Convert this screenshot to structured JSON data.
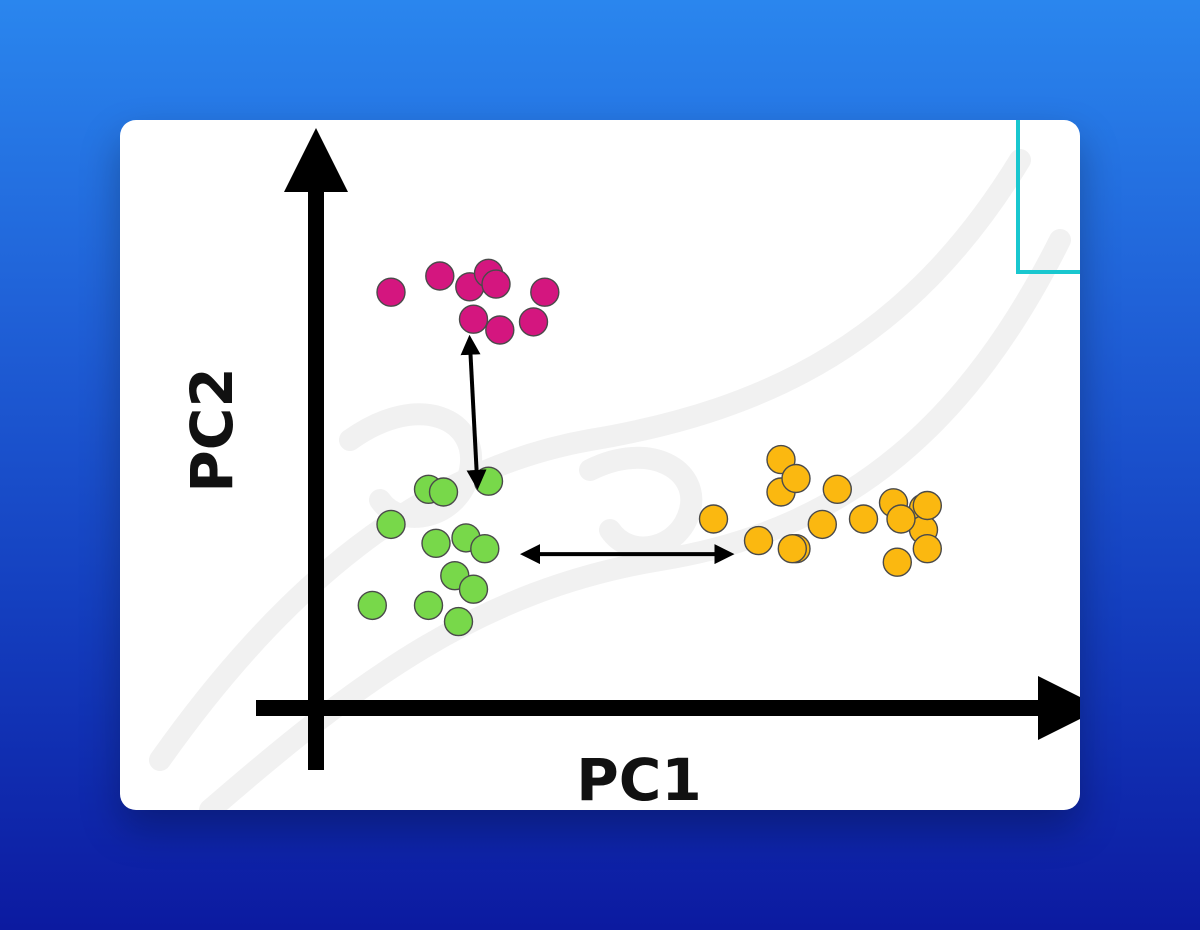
{
  "chart_data": {
    "type": "scatter",
    "xlabel": "PC1",
    "ylabel": "PC2",
    "xlim": [
      0,
      100
    ],
    "ylim": [
      0,
      100
    ],
    "grid": false,
    "series": [
      {
        "color": "#d4167f",
        "points": [
          [
            10,
            77
          ],
          [
            16.5,
            80
          ],
          [
            20.5,
            78
          ],
          [
            23,
            80.5
          ],
          [
            24,
            78.5
          ],
          [
            21,
            72
          ],
          [
            24.5,
            70
          ],
          [
            30.5,
            77
          ],
          [
            29,
            71.5
          ]
        ]
      },
      {
        "color": "#78d84a",
        "points": [
          [
            10,
            34
          ],
          [
            15,
            40.5
          ],
          [
            17,
            40
          ],
          [
            23,
            42
          ],
          [
            16,
            30.5
          ],
          [
            20,
            31.5
          ],
          [
            22.5,
            29.5
          ],
          [
            18.5,
            24.5
          ],
          [
            21,
            22
          ],
          [
            7.5,
            19
          ],
          [
            15,
            19
          ],
          [
            19,
            16
          ]
        ]
      },
      {
        "color": "#fbb810",
        "points": [
          [
            53,
            35
          ],
          [
            62,
            46
          ],
          [
            62,
            40
          ],
          [
            64,
            42.5
          ],
          [
            69.5,
            40.5
          ],
          [
            67.5,
            34
          ],
          [
            73,
            35
          ],
          [
            77,
            38
          ],
          [
            81,
            37
          ],
          [
            81,
            33
          ],
          [
            59,
            31
          ],
          [
            64,
            29.5
          ],
          [
            63.5,
            29.5
          ],
          [
            78,
            35
          ],
          [
            81.5,
            37.5
          ],
          [
            77.5,
            27
          ],
          [
            81.5,
            29.5
          ]
        ]
      }
    ],
    "annotations": [
      {
        "type": "double-arrow",
        "from": [
          20.5,
          68
        ],
        "to": [
          21.5,
          41.5
        ]
      },
      {
        "type": "double-arrow",
        "from": [
          28,
          28.5
        ],
        "to": [
          55,
          28.5
        ]
      }
    ]
  }
}
